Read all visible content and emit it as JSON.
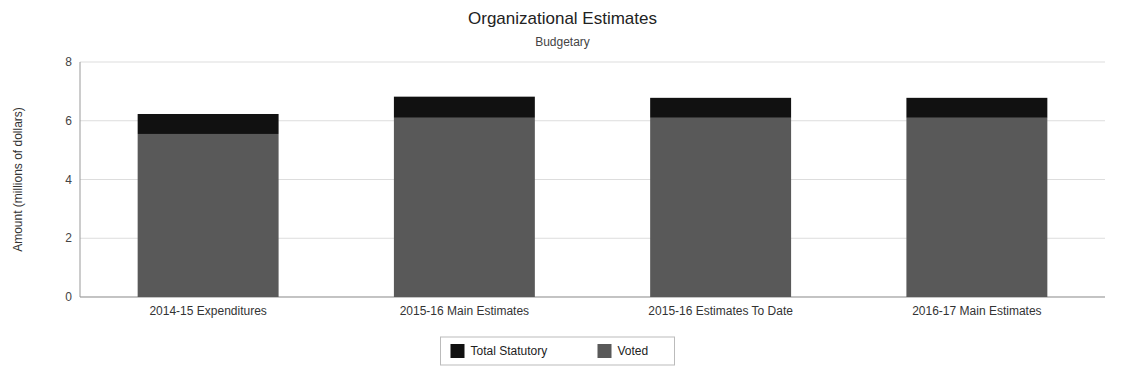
{
  "chart_data": {
    "type": "bar",
    "stacked": true,
    "title": "Organizational Estimates",
    "subtitle": "Budgetary",
    "y_label": "Amount (millions of dollars)",
    "categories": [
      "2014-15 Expenditures",
      "2015-16 Main Estimates",
      "2015-16 Estimates To Date",
      "2016-17 Main Estimates"
    ],
    "series": [
      {
        "name": "Voted",
        "color": "#595959",
        "values": [
          5.55,
          6.1,
          6.1,
          6.1
        ]
      },
      {
        "name": "Total Statutory",
        "color": "#111111",
        "values": [
          0.68,
          0.72,
          0.68,
          0.68
        ]
      }
    ],
    "ylim": [
      0,
      8
    ],
    "yticks": [
      0,
      2,
      4,
      6,
      8
    ],
    "grid": true,
    "legend": "bottom"
  }
}
